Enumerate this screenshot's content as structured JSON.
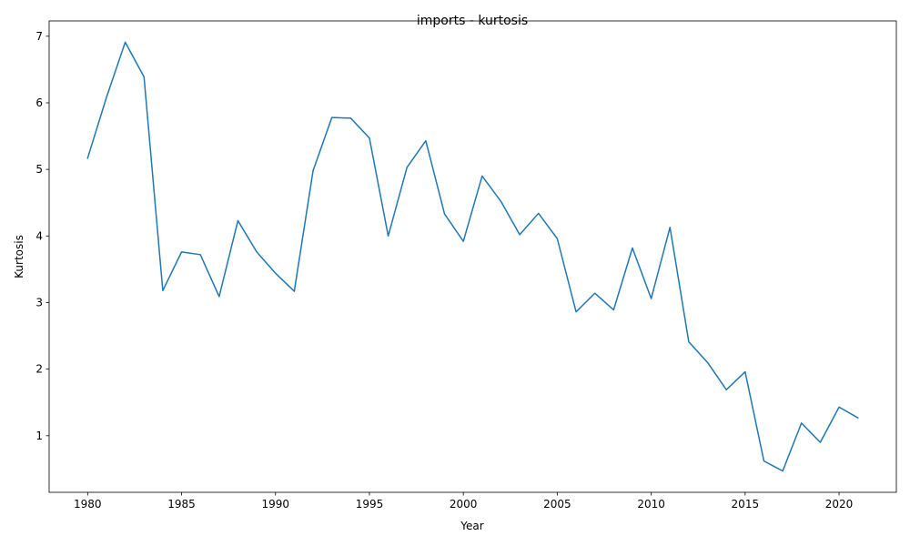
{
  "chart_data": {
    "type": "line",
    "title": "imports - kurtosis",
    "xlabel": "Year",
    "ylabel": "Kurtosis",
    "xlim": [
      1977.95,
      2023.05
    ],
    "ylim": [
      0.15,
      7.23
    ],
    "xticks": [
      1980,
      1985,
      1990,
      1995,
      2000,
      2005,
      2010,
      2015,
      2020
    ],
    "yticks": [
      1,
      2,
      3,
      4,
      5,
      6,
      7
    ],
    "grid": false,
    "line_color": "#1f77b4",
    "series": [
      {
        "x": [
          1980,
          1981,
          1982,
          1983,
          1984,
          1985,
          1986,
          1987,
          1988,
          1989,
          1990,
          1991,
          1992,
          1993,
          1994,
          1995,
          1996,
          1997,
          1998,
          1999,
          2000,
          2001,
          2002,
          2003,
          2004,
          2005,
          2006,
          2007,
          2008,
          2009,
          2010,
          2011,
          2012,
          2013,
          2014,
          2015,
          2016,
          2017,
          2018,
          2019,
          2020,
          2021
        ],
        "values": [
          5.17,
          6.08,
          6.91,
          6.39,
          3.18,
          3.76,
          3.72,
          3.09,
          4.23,
          3.76,
          3.44,
          3.17,
          4.98,
          5.78,
          5.77,
          5.47,
          4.0,
          5.03,
          5.43,
          4.33,
          3.92,
          4.9,
          4.52,
          4.02,
          4.34,
          3.96,
          2.86,
          3.14,
          2.89,
          3.82,
          3.06,
          4.13,
          2.41,
          2.1,
          1.69,
          1.96,
          0.62,
          0.47,
          1.19,
          0.9,
          1.43,
          1.27
        ]
      }
    ]
  }
}
